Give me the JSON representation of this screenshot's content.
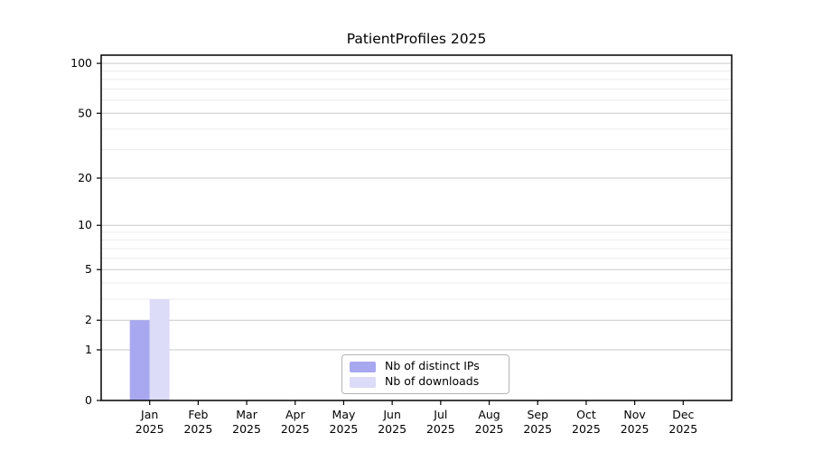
{
  "chart_data": {
    "type": "bar",
    "title": "PatientProfiles 2025",
    "categories": [
      "Jan",
      "Feb",
      "Mar",
      "Apr",
      "May",
      "Jun",
      "Jul",
      "Aug",
      "Sep",
      "Oct",
      "Nov",
      "Dec"
    ],
    "year_label": "2025",
    "series": [
      {
        "name": "Nb of distinct IPs",
        "color": "#a8a8f0",
        "values": [
          2,
          0,
          0,
          0,
          0,
          0,
          0,
          0,
          0,
          0,
          0,
          0
        ]
      },
      {
        "name": "Nb of downloads",
        "color": "#dcdcf8",
        "values": [
          3,
          0,
          0,
          0,
          0,
          0,
          0,
          0,
          0,
          0,
          0,
          0
        ]
      }
    ],
    "yscale": "log1p",
    "ylim": [
      0,
      112
    ],
    "y_major_ticks": [
      0,
      1,
      2,
      5,
      10,
      20,
      50,
      100
    ],
    "y_minor_gridlines": [
      3,
      4,
      6,
      7,
      8,
      9,
      30,
      40,
      60,
      70,
      80,
      90
    ],
    "grid": "horizontal-only",
    "legend_position": "bottom-center-inside"
  },
  "colors": {
    "background": "#ffffff",
    "spine": "#000000",
    "major_grid": "#c9c9c9",
    "minor_grid": "#ececec",
    "text": "#000000",
    "legend_border": "#b4b4b4"
  }
}
